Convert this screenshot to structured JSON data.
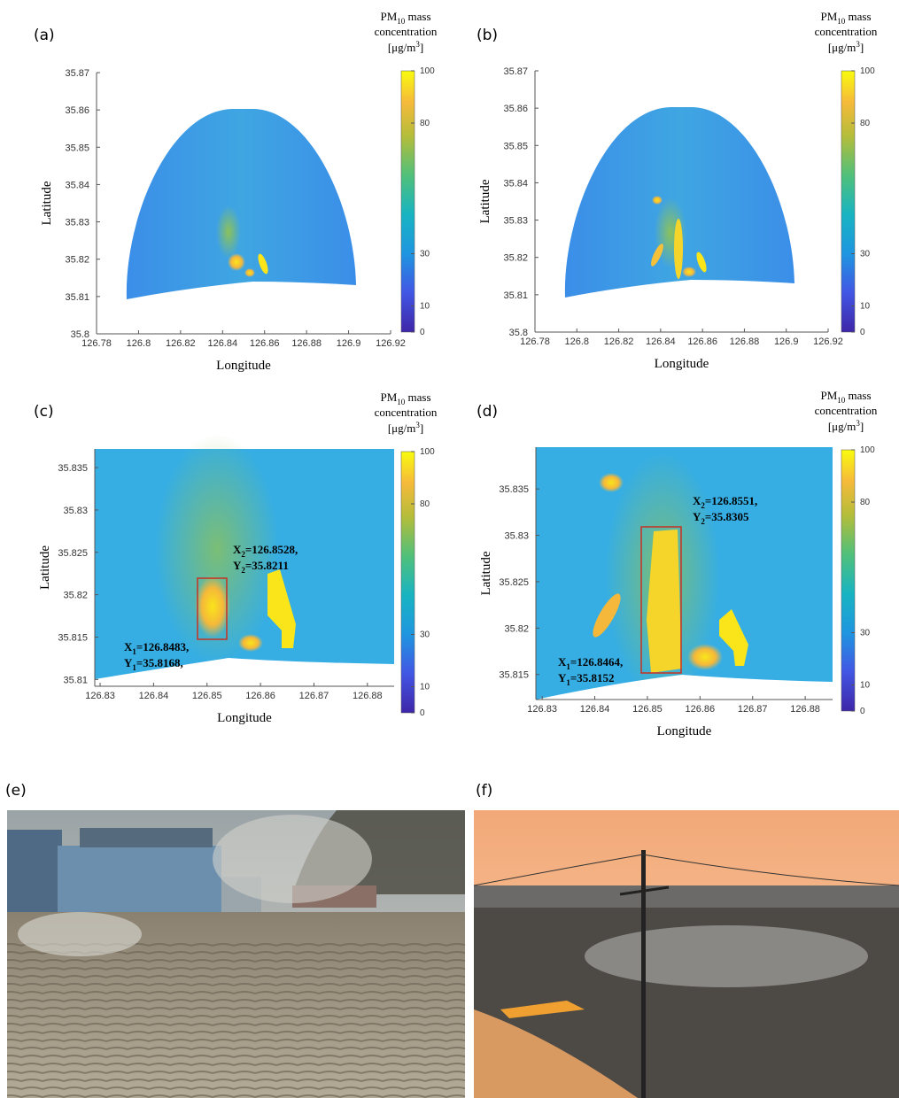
{
  "panels": [
    {
      "label": "(a)",
      "xlabel": "Longitude",
      "ylabel": "Latitude",
      "xlim": [
        126.78,
        126.92
      ],
      "xticks": [
        126.78,
        126.8,
        126.82,
        126.84,
        126.86,
        126.88,
        126.9,
        126.92
      ],
      "ylim": [
        35.8,
        35.87
      ],
      "yticks": [
        35.8,
        35.81,
        35.82,
        35.83,
        35.84,
        35.85,
        35.86,
        35.87
      ],
      "colorbar": {
        "title": {
          "pm": "PM",
          "sub": "10",
          "rest": " mass",
          "line2": "concentration",
          "line3a": "[μg/m",
          "sup": "3",
          "line3b": "]"
        },
        "lim": [
          0,
          100
        ],
        "ticks": [
          0,
          10,
          30,
          80,
          100
        ]
      }
    },
    {
      "label": "(b)",
      "xlabel": "Longitude",
      "ylabel": "Latitude",
      "xlim": [
        126.78,
        126.92
      ],
      "xticks": [
        126.78,
        126.8,
        126.82,
        126.84,
        126.86,
        126.88,
        126.9,
        126.92
      ],
      "ylim": [
        35.8,
        35.87
      ],
      "yticks": [
        35.8,
        35.81,
        35.82,
        35.83,
        35.84,
        35.85,
        35.86,
        35.87
      ],
      "colorbar": {
        "title": {
          "pm": "PM",
          "sub": "10",
          "rest": " mass",
          "line2": "concentration",
          "line3a": "[μg/m",
          "sup": "3",
          "line3b": "]"
        },
        "lim": [
          0,
          100
        ],
        "ticks": [
          0,
          10,
          30,
          80,
          100
        ]
      }
    },
    {
      "label": "(c)",
      "xlabel": "Longitude",
      "ylabel": "Latitude",
      "xlim": [
        126.829,
        126.885
      ],
      "xticks": [
        126.83,
        126.84,
        126.85,
        126.86,
        126.87,
        126.88
      ],
      "ylim": [
        35.8092,
        35.8372
      ],
      "yticks": [
        35.81,
        35.815,
        35.82,
        35.825,
        35.83,
        35.835
      ],
      "colorbar": {
        "title": {
          "pm": "PM",
          "sub": "10",
          "rest": " mass",
          "line2": "concentration",
          "line3a": "[μg/m",
          "sup": "3",
          "line3b": "]"
        },
        "lim": [
          0,
          100
        ],
        "ticks": [
          0,
          10,
          30,
          80,
          100
        ]
      },
      "annotations": [
        {
          "l1": [
            "X",
            "1",
            "=126.8483,"
          ],
          "l2": [
            "Y",
            "1",
            "=35.8168,"
          ]
        },
        {
          "l1": [
            "X",
            "2",
            "=126.8528,"
          ],
          "l2": [
            "Y",
            "2",
            "=35.8211"
          ]
        }
      ]
    },
    {
      "label": "(d)",
      "xlabel": "Longitude",
      "ylabel": "Latitude",
      "xlim": [
        126.8288,
        126.8852
      ],
      "xticks": [
        126.83,
        126.84,
        126.85,
        126.86,
        126.87,
        126.88
      ],
      "ylim": [
        35.8123,
        35.8395
      ],
      "yticks": [
        35.815,
        35.82,
        35.825,
        35.83,
        35.835
      ],
      "colorbar": {
        "title": {
          "pm": "PM",
          "sub": "10",
          "rest": " mass",
          "line2": "concentration",
          "line3a": "[μg/m",
          "sup": "3",
          "line3b": "]"
        },
        "lim": [
          0,
          100
        ],
        "ticks": [
          0,
          10,
          30,
          80,
          100
        ]
      },
      "annotations": [
        {
          "l1": [
            "X",
            "1",
            "=126.8464,"
          ],
          "l2": [
            "Y",
            "1",
            "=35.8152"
          ]
        },
        {
          "l1": [
            "X",
            "2",
            "=126.8551,"
          ],
          "l2": [
            "Y",
            "2",
            "=35.8305"
          ]
        }
      ]
    },
    {
      "label": "(e)"
    },
    {
      "label": "(f)"
    }
  ]
}
